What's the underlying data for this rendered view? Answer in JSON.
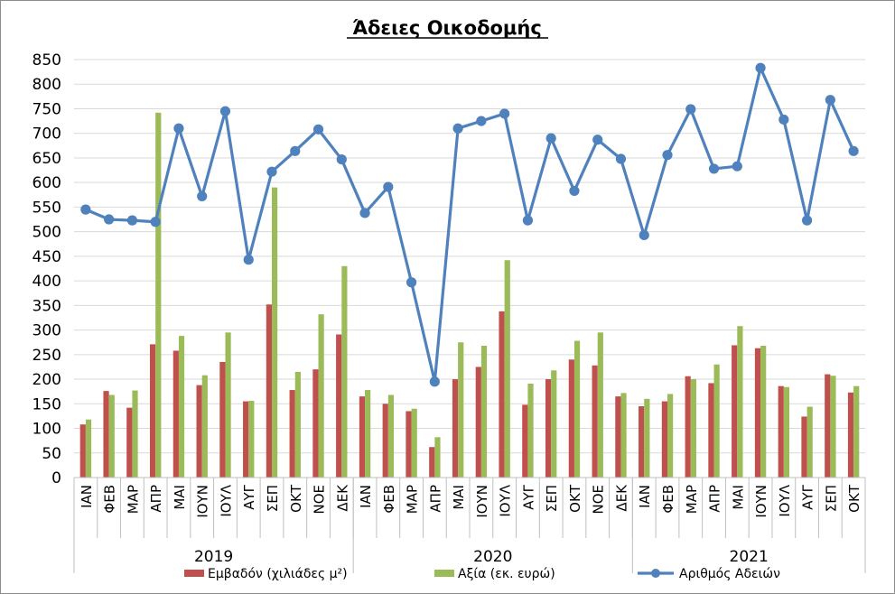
{
  "chart_data": {
    "type": "bar",
    "title": "Άδειες Οικοδομής",
    "ylim": [
      0,
      850
    ],
    "yticks": [
      0,
      50,
      100,
      150,
      200,
      250,
      300,
      350,
      400,
      450,
      500,
      550,
      600,
      650,
      700,
      750,
      800,
      850
    ],
    "grid": true,
    "legend_position": "bottom",
    "categories": [
      "ΙΑΝ",
      "ΦΕΒ",
      "ΜΑΡ",
      "ΑΠΡ",
      "ΜΑΙ",
      "ΙΟΥΝ",
      "ΙΟΥΛ",
      "ΑΥΓ",
      "ΣΕΠ",
      "ΟΚΤ",
      "ΝΟΕ",
      "ΔΕΚ",
      "ΙΑΝ",
      "ΦΕΒ",
      "ΜΑΡ",
      "ΑΠΡ",
      "ΜΑΙ",
      "ΙΟΥΝ",
      "ΙΟΥΛ",
      "ΑΥΓ",
      "ΣΕΠ",
      "ΟΚΤ",
      "ΝΟΕ",
      "ΔΕΚ",
      "ΙΑΝ",
      "ΦΕΒ",
      "ΜΑΡ",
      "ΑΠΡ",
      "ΜΑΙ",
      "ΙΟΥΝ",
      "ΙΟΥΛ",
      "ΑΥΓ",
      "ΣΕΠ",
      "ΟΚΤ"
    ],
    "groups": [
      {
        "label": "2019",
        "count": 12
      },
      {
        "label": "2020",
        "count": 12
      },
      {
        "label": "2021",
        "count": 10
      }
    ],
    "series": [
      {
        "name": "Εμβαδόν (χιλιάδες μ²)",
        "type": "bar",
        "color": "#c0504d",
        "values": [
          108,
          176,
          142,
          271,
          258,
          188,
          235,
          155,
          352,
          178,
          220,
          291,
          165,
          150,
          135,
          62,
          200,
          225,
          338,
          148,
          200,
          240,
          228,
          165,
          145,
          155,
          206,
          192,
          269,
          263,
          186,
          124,
          210,
          173
        ]
      },
      {
        "name": "Αξία (εκ. ευρώ)",
        "type": "bar",
        "color": "#9bbb59",
        "values": [
          118,
          168,
          177,
          742,
          288,
          208,
          295,
          156,
          590,
          215,
          332,
          430,
          178,
          168,
          140,
          82,
          275,
          268,
          442,
          191,
          218,
          278,
          295,
          172,
          160,
          170,
          200,
          230,
          308,
          268,
          184,
          144,
          207,
          186
        ]
      },
      {
        "name": "Αριθμός Αδειών",
        "type": "line",
        "color": "#4f81bd",
        "values": [
          545,
          525,
          523,
          520,
          710,
          572,
          745,
          443,
          622,
          664,
          708,
          647,
          538,
          591,
          397,
          195,
          710,
          725,
          740,
          523,
          690,
          583,
          687,
          648,
          493,
          656,
          749,
          628,
          633,
          833,
          728,
          523,
          768,
          664
        ]
      }
    ]
  }
}
